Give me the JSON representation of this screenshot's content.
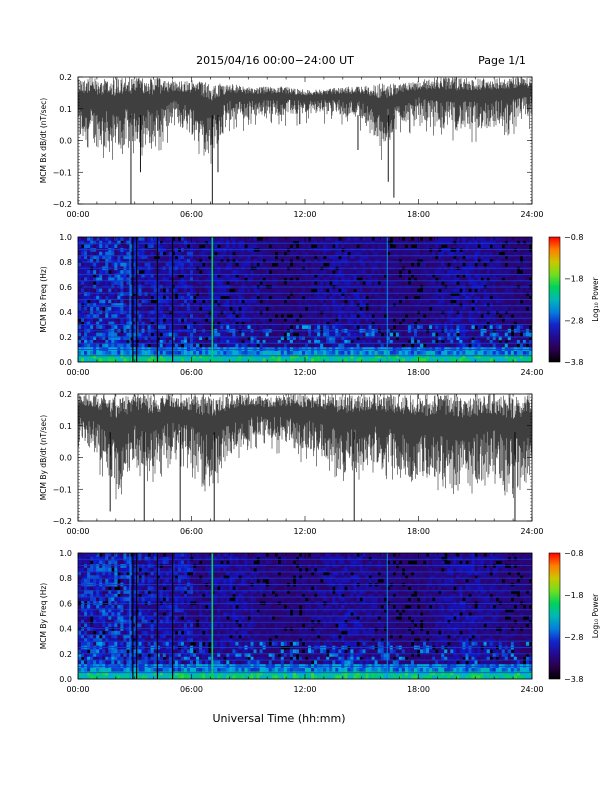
{
  "header": {
    "title": "2015/04/16  00:00−24:00 UT",
    "page": "Page 1/1"
  },
  "footer": {
    "xlabel": "Universal Time (hh:mm)"
  },
  "chart_data": [
    {
      "type": "line",
      "ylabel": "MCM Bx dB/dt (nT/sec)",
      "xlim": [
        0,
        24
      ],
      "ylim": [
        -0.2,
        0.2
      ],
      "x_ticks": [
        "00:00",
        "06:00",
        "12:00",
        "18:00",
        "24:00"
      ],
      "y_ticks": [
        "0.2",
        "0.1",
        "0.0",
        "−0.1",
        "−0.2"
      ],
      "x_units": "hours UT",
      "envelope_upper": [
        0.2,
        0.2,
        0.2,
        0.2,
        0.2,
        0.19,
        0.19,
        0.18,
        0.18,
        0.17,
        0.17,
        0.17,
        0.16,
        0.16,
        0.17,
        0.17,
        0.18,
        0.18,
        0.19,
        0.2,
        0.2,
        0.2,
        0.2,
        0.2,
        0.2
      ],
      "envelope_lower": [
        0.0,
        -0.02,
        -0.05,
        0.0,
        -0.03,
        0.05,
        0.02,
        -0.05,
        0.06,
        0.07,
        0.08,
        0.08,
        0.08,
        0.09,
        0.08,
        0.07,
        -0.03,
        0.05,
        0.07,
        0.04,
        0.03,
        0.03,
        0.04,
        0.05,
        0.07
      ],
      "spikes": [
        {
          "x": 2.8,
          "y": -0.2
        },
        {
          "x": 3.3,
          "y": -0.1
        },
        {
          "x": 7.1,
          "y": -0.2
        },
        {
          "x": 7.4,
          "y": -0.1
        },
        {
          "x": 14.8,
          "y": -0.03
        },
        {
          "x": 16.4,
          "y": -0.13
        },
        {
          "x": 16.7,
          "y": -0.18
        }
      ]
    },
    {
      "type": "heatmap",
      "ylabel": "MCM Bx Freq (Hz)",
      "colorbar_label": "Log₁₀ Power",
      "xlim": [
        0,
        24
      ],
      "ylim": [
        0.0,
        1.0
      ],
      "x_ticks": [
        "00:00",
        "06:00",
        "12:00",
        "18:00",
        "24:00"
      ],
      "y_ticks": [
        "1.0",
        "0.8",
        "0.6",
        "0.4",
        "0.2",
        "0.0"
      ],
      "clim": [
        -3.8,
        -0.8
      ],
      "cbar_ticks": [
        "−0.8",
        "−1.8",
        "−2.8",
        "−3.8"
      ],
      "harmonic_lines_hz": [
        0.05,
        0.1,
        0.15,
        0.2,
        0.25,
        0.3,
        0.35,
        0.4,
        0.45,
        0.5,
        0.55,
        0.6,
        0.65,
        0.7,
        0.75,
        0.8,
        0.85,
        0.9,
        0.95
      ],
      "broadband_events_hours": [
        2.75,
        7.1,
        16.35
      ],
      "data_gaps_hours": [
        2.9,
        3.1,
        4.2,
        5.0
      ]
    },
    {
      "type": "line",
      "ylabel": "MCM By dB/dt (nT/sec)",
      "xlim": [
        0,
        24
      ],
      "ylim": [
        -0.2,
        0.2
      ],
      "x_ticks": [
        "00:00",
        "06:00",
        "12:00",
        "18:00",
        "24:00"
      ],
      "y_ticks": [
        "0.2",
        "0.1",
        "0.0",
        "−0.1",
        "−0.2"
      ],
      "x_units": "hours UT",
      "envelope_upper": [
        0.2,
        0.2,
        0.2,
        0.2,
        0.2,
        0.2,
        0.2,
        0.2,
        0.2,
        0.2,
        0.19,
        0.2,
        0.2,
        0.2,
        0.2,
        0.2,
        0.2,
        0.2,
        0.2,
        0.2,
        0.2,
        0.2,
        0.2,
        0.2,
        0.2
      ],
      "envelope_lower": [
        0.05,
        0.0,
        -0.12,
        -0.02,
        -0.05,
        0.02,
        -0.02,
        -0.1,
        0.0,
        0.05,
        0.06,
        0.04,
        0.02,
        0.0,
        -0.05,
        -0.03,
        -0.02,
        -0.05,
        -0.08,
        -0.08,
        -0.12,
        -0.08,
        -0.05,
        -0.12,
        -0.06
      ],
      "spikes": [
        {
          "x": 1.7,
          "y": -0.17
        },
        {
          "x": 3.5,
          "y": -0.2
        },
        {
          "x": 5.4,
          "y": -0.2
        },
        {
          "x": 7.2,
          "y": -0.2
        },
        {
          "x": 14.6,
          "y": -0.2
        },
        {
          "x": 23.1,
          "y": -0.2
        }
      ]
    },
    {
      "type": "heatmap",
      "ylabel": "MCM By Freq (Hz)",
      "colorbar_label": "Log₁₀ Power",
      "xlim": [
        0,
        24
      ],
      "ylim": [
        0.0,
        1.0
      ],
      "x_ticks": [
        "00:00",
        "06:00",
        "12:00",
        "18:00",
        "24:00"
      ],
      "y_ticks": [
        "1.0",
        "0.8",
        "0.6",
        "0.4",
        "0.2",
        "0.0"
      ],
      "clim": [
        -3.8,
        -0.8
      ],
      "cbar_ticks": [
        "−0.8",
        "−1.8",
        "−2.8",
        "−3.8"
      ],
      "harmonic_lines_hz": [
        0.05,
        0.1,
        0.15,
        0.2,
        0.25,
        0.3,
        0.35,
        0.4,
        0.45,
        0.5,
        0.55,
        0.6,
        0.65,
        0.7,
        0.75,
        0.8,
        0.85,
        0.9,
        0.95
      ],
      "broadband_events_hours": [
        2.75,
        7.1,
        16.35
      ],
      "data_gaps_hours": [
        2.9,
        3.1,
        4.2,
        5.0
      ]
    }
  ]
}
